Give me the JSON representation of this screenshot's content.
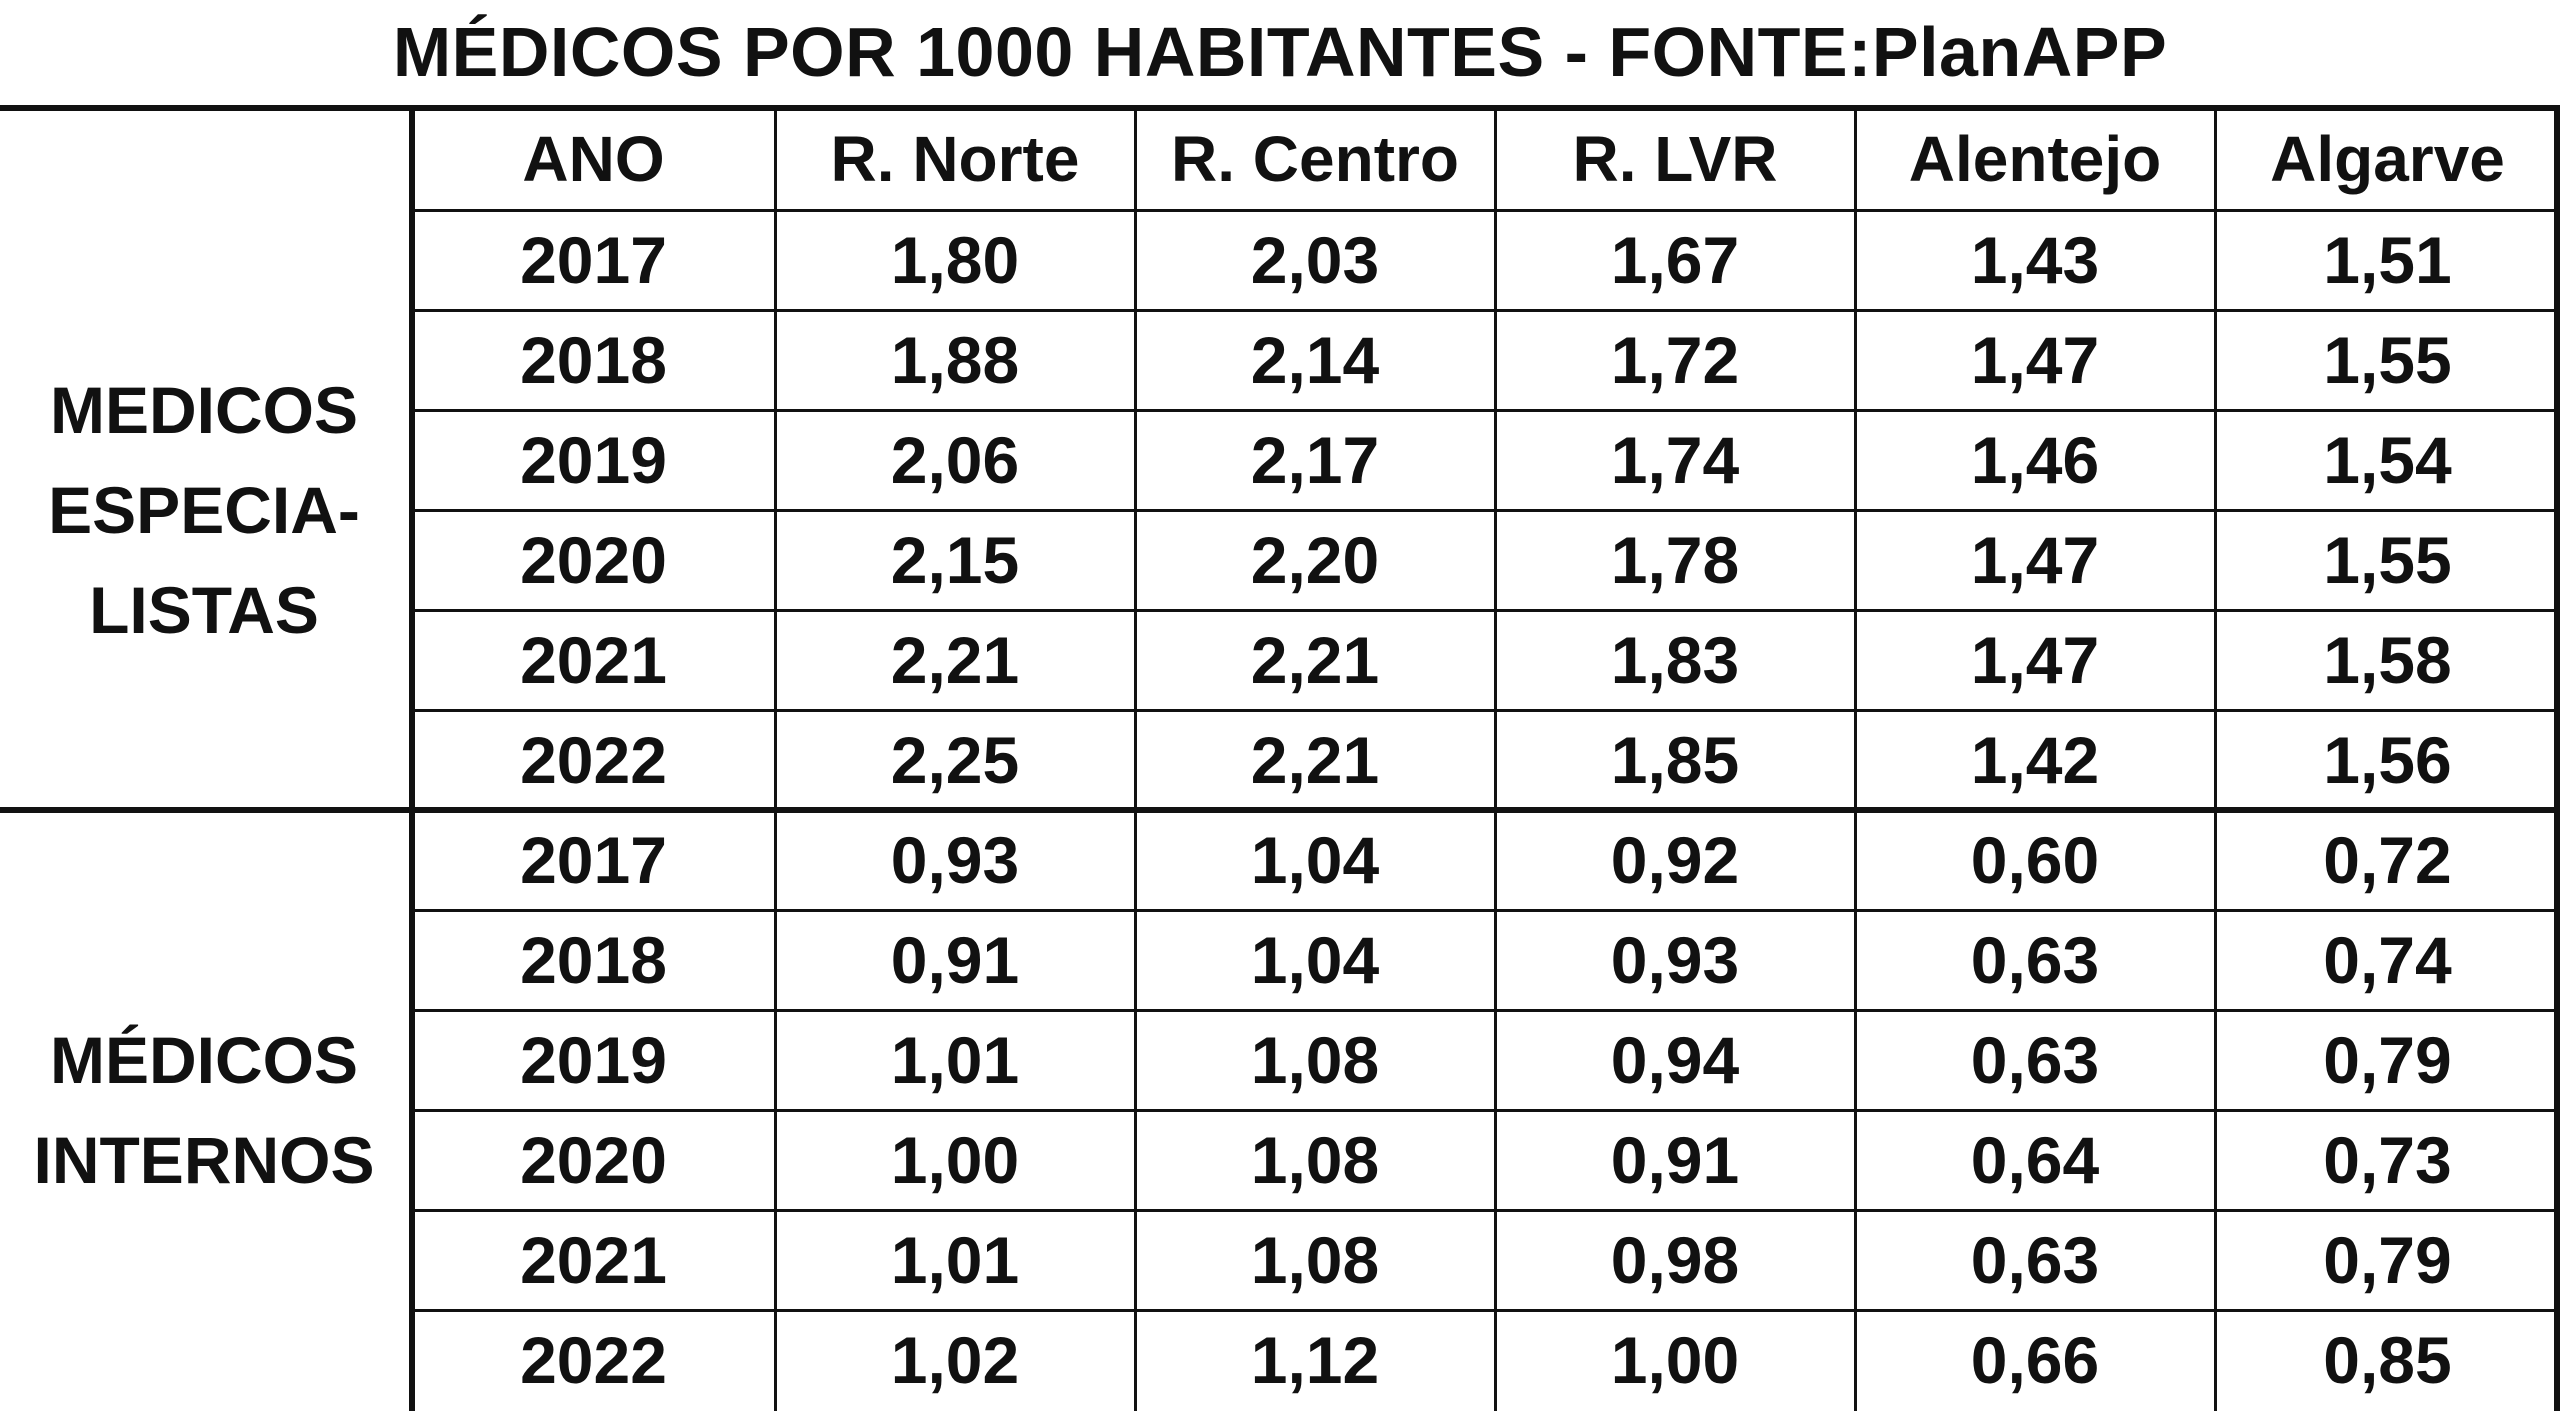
{
  "title": "MÉDICOS POR 1000 HABITANTES - FONTE:PlanAPP",
  "chart_data": {
    "type": "table",
    "title": "MÉDICOS POR 1000 HABITANTES - FONTE:PlanAPP",
    "columns": [
      "ANO",
      "R. Norte",
      "R. Centro",
      "R. LVR",
      "Alentejo",
      "Algarve"
    ],
    "groups": [
      {
        "label_lines": [
          "MEDICOS",
          "ESPECIA-",
          "LISTAS"
        ],
        "rows": [
          {
            "ano": "2017",
            "values": [
              "1,80",
              "2,03",
              "1,67",
              "1,43",
              "1,51"
            ]
          },
          {
            "ano": "2018",
            "values": [
              "1,88",
              "2,14",
              "1,72",
              "1,47",
              "1,55"
            ]
          },
          {
            "ano": "2019",
            "values": [
              "2,06",
              "2,17",
              "1,74",
              "1,46",
              "1,54"
            ]
          },
          {
            "ano": "2020",
            "values": [
              "2,15",
              "2,20",
              "1,78",
              "1,47",
              "1,55"
            ]
          },
          {
            "ano": "2021",
            "values": [
              "2,21",
              "2,21",
              "1,83",
              "1,47",
              "1,58"
            ]
          },
          {
            "ano": "2022",
            "values": [
              "2,25",
              "2,21",
              "1,85",
              "1,42",
              "1,56"
            ]
          }
        ]
      },
      {
        "label_lines": [
          "MÉDICOS",
          "INTERNOS"
        ],
        "rows": [
          {
            "ano": "2017",
            "values": [
              "0,93",
              "1,04",
              "0,92",
              "0,60",
              "0,72"
            ]
          },
          {
            "ano": "2018",
            "values": [
              "0,91",
              "1,04",
              "0,93",
              "0,63",
              "0,74"
            ]
          },
          {
            "ano": "2019",
            "values": [
              "1,01",
              "1,08",
              "0,94",
              "0,63",
              "0,79"
            ]
          },
          {
            "ano": "2020",
            "values": [
              "1,00",
              "1,08",
              "0,91",
              "0,64",
              "0,73"
            ]
          },
          {
            "ano": "2021",
            "values": [
              "1,01",
              "1,08",
              "0,98",
              "0,63",
              "0,79"
            ]
          },
          {
            "ano": "2022",
            "values": [
              "1,02",
              "1,12",
              "1,00",
              "0,66",
              "0,85"
            ]
          }
        ]
      }
    ],
    "colors": {
      "text": "#111111",
      "grid": "#111111",
      "background": "#ffffff"
    }
  }
}
